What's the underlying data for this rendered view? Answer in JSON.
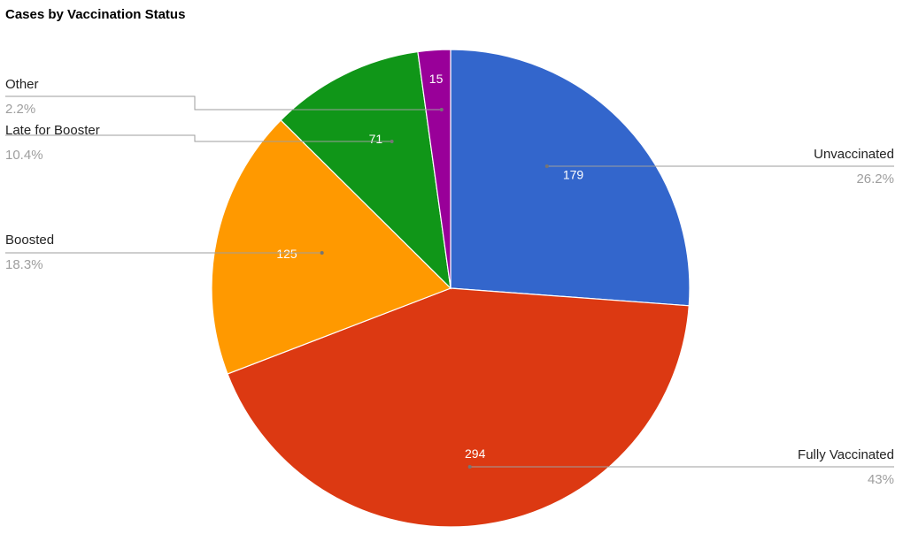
{
  "chart_data": {
    "type": "pie",
    "title": "Cases by Vaccination Status",
    "slices": [
      {
        "label": "Unvaccinated",
        "value": 179,
        "percent_label": "26.2%",
        "color": "#3366cc"
      },
      {
        "label": "Fully Vaccinated",
        "value": 294,
        "percent_label": "43%",
        "color": "#dc3912"
      },
      {
        "label": "Boosted",
        "value": 125,
        "percent_label": "18.3%",
        "color": "#ff9900"
      },
      {
        "label": "Late for Booster",
        "value": 71,
        "percent_label": "10.4%",
        "color": "#109618"
      },
      {
        "label": "Other",
        "value": 15,
        "percent_label": "2.2%",
        "color": "#990099"
      }
    ],
    "legend": "external labels with leader lines"
  }
}
